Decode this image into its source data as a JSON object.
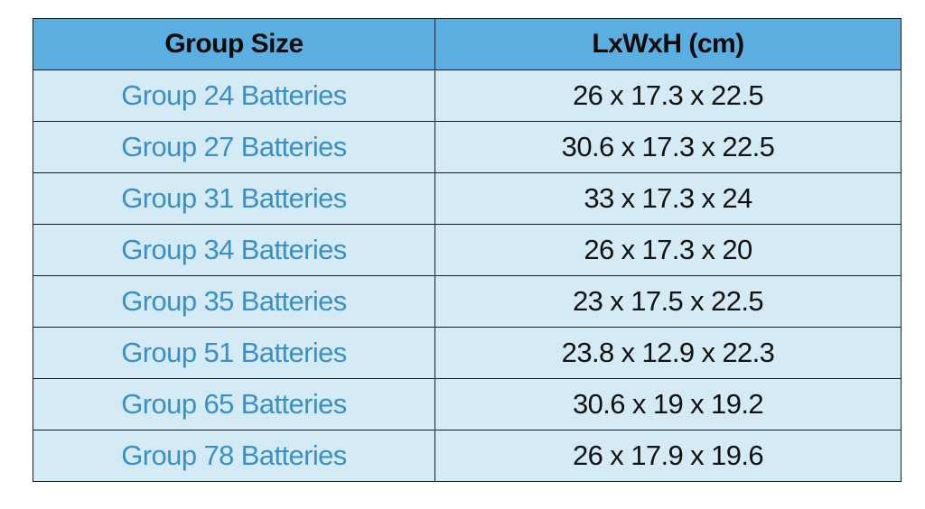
{
  "table": {
    "headers": {
      "group_size": "Group Size",
      "dimensions": "LxWxH (cm)"
    },
    "rows": [
      {
        "group": "Group 24 Batteries",
        "dimensions": "26 x 17.3 x 22.5"
      },
      {
        "group": "Group 27 Batteries",
        "dimensions": "30.6 x 17.3 x 22.5"
      },
      {
        "group": "Group 31 Batteries",
        "dimensions": "33 x 17.3 x 24"
      },
      {
        "group": "Group 34 Batteries",
        "dimensions": "26 x 17.3 x 20"
      },
      {
        "group": "Group 35 Batteries",
        "dimensions": "23 x 17.5 x 22.5"
      },
      {
        "group": "Group 51 Batteries",
        "dimensions": "23.8 x 12.9 x 22.3"
      },
      {
        "group": "Group 65 Batteries",
        "dimensions": "30.6 x 19 x 19.2"
      },
      {
        "group": "Group 78 Batteries",
        "dimensions": "26 x 17.9 x 19.6"
      }
    ]
  },
  "colors": {
    "header_background": "#5aaee0",
    "row_background": "#d4ebf5",
    "group_text": "#3a8fc7",
    "dimension_text": "#111111",
    "border": "#1a1a1a"
  }
}
